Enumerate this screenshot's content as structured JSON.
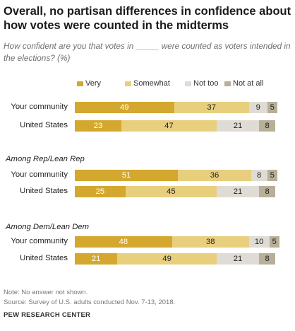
{
  "title": "Overall, no partisan differences in confidence about how votes were counted in the midterms",
  "subtitle": "How confident are you that votes in _____ were counted as voters intended in the elections? (%)",
  "note": "Note: No answer not shown.",
  "source": "Source: Survey of U.S. adults conducted Nov. 7-13, 2018.",
  "brand": "PEW RESEARCH CENTER",
  "colors": {
    "very": "#d4a82e",
    "somewhat": "#e8cf7e",
    "not_too": "#dedcd4",
    "not_at_all": "#b7af97"
  },
  "chart_data": {
    "type": "bar",
    "orientation": "horizontal",
    "stacked": true,
    "legend": [
      "Very",
      "Somewhat",
      "Not too",
      "Not at all"
    ],
    "legend_placement": "top",
    "groups": [
      {
        "label": "",
        "rows": [
          {
            "label": "Your community",
            "values": [
              49,
              37,
              9,
              5
            ]
          },
          {
            "label": "United States",
            "values": [
              23,
              47,
              21,
              8
            ]
          }
        ]
      },
      {
        "label": "Among Rep/Lean Rep",
        "rows": [
          {
            "label": "Your community",
            "values": [
              51,
              36,
              8,
              5
            ]
          },
          {
            "label": "United States",
            "values": [
              25,
              45,
              21,
              8
            ]
          }
        ]
      },
      {
        "label": "Among Dem/Lean Dem",
        "rows": [
          {
            "label": "Your community",
            "values": [
              48,
              38,
              10,
              5
            ]
          },
          {
            "label": "United States",
            "values": [
              21,
              49,
              21,
              8
            ]
          }
        ]
      }
    ]
  }
}
